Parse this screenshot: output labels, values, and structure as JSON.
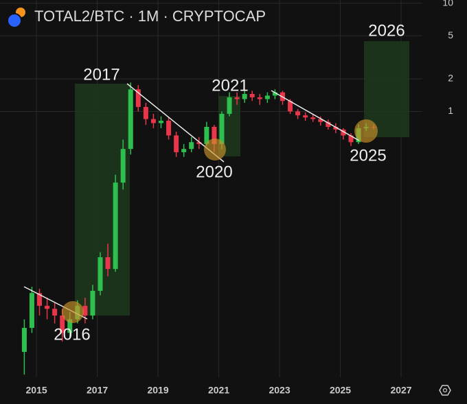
{
  "chart_data": {
    "type": "candlestick",
    "title": "TOTAL2/BTC · 1M · CRYPTOCAP",
    "x": [
      2014.6,
      2014.85,
      2015.1,
      2015.35,
      2015.6,
      2015.85,
      2016.1,
      2016.35,
      2016.6,
      2016.85,
      2017.1,
      2017.35,
      2017.6,
      2017.85,
      2018.1,
      2018.35,
      2018.6,
      2018.85,
      2019.1,
      2019.35,
      2019.6,
      2019.85,
      2020.1,
      2020.35,
      2020.6,
      2020.85,
      2021.1,
      2021.35,
      2021.6,
      2021.85,
      2022.1,
      2022.35,
      2022.6,
      2022.85,
      2023.1,
      2023.35,
      2023.6,
      2023.85,
      2024.1,
      2024.35,
      2024.6,
      2024.85,
      2025.1,
      2025.35,
      2025.6,
      2025.85,
      2026.1
    ],
    "open": [
      0.006,
      0.01,
      0.021,
      0.016,
      0.015,
      0.013,
      0.009,
      0.012,
      0.016,
      0.013,
      0.022,
      0.045,
      0.035,
      0.22,
      0.45,
      1.6,
      1.1,
      0.85,
      0.78,
      0.82,
      0.6,
      0.42,
      0.45,
      0.52,
      0.5,
      0.72,
      0.5,
      0.95,
      1.35,
      1.3,
      1.45,
      1.35,
      1.3,
      1.4,
      1.5,
      1.25,
      1.0,
      0.92,
      0.88,
      0.85,
      0.8,
      0.72,
      0.68,
      0.6,
      0.52,
      0.7,
      0.72
    ],
    "high": [
      0.012,
      0.024,
      0.023,
      0.019,
      0.017,
      0.015,
      0.014,
      0.018,
      0.019,
      0.025,
      0.05,
      0.06,
      0.26,
      0.55,
      1.85,
      1.75,
      1.2,
      0.95,
      0.9,
      0.88,
      0.65,
      0.5,
      0.58,
      0.58,
      0.8,
      0.75,
      1.0,
      1.5,
      1.5,
      1.55,
      1.55,
      1.45,
      1.5,
      1.6,
      1.55,
      1.3,
      1.05,
      0.98,
      0.95,
      0.9,
      0.84,
      0.78,
      0.7,
      0.63,
      0.76,
      0.78,
      0.76
    ],
    "low": [
      0.0037,
      0.009,
      0.013,
      0.012,
      0.011,
      0.0075,
      0.008,
      0.011,
      0.011,
      0.012,
      0.02,
      0.03,
      0.033,
      0.19,
      0.4,
      1.0,
      0.75,
      0.7,
      0.7,
      0.55,
      0.38,
      0.38,
      0.42,
      0.45,
      0.48,
      0.42,
      0.45,
      0.9,
      1.15,
      1.2,
      1.25,
      1.15,
      1.2,
      1.3,
      1.15,
      0.95,
      0.85,
      0.82,
      0.8,
      0.74,
      0.68,
      0.63,
      0.55,
      0.48,
      0.5,
      0.66,
      0.68
    ],
    "close": [
      0.01,
      0.021,
      0.016,
      0.015,
      0.013,
      0.009,
      0.012,
      0.016,
      0.013,
      0.022,
      0.045,
      0.035,
      0.22,
      0.45,
      1.6,
      1.1,
      0.85,
      0.78,
      0.82,
      0.6,
      0.42,
      0.45,
      0.52,
      0.5,
      0.72,
      0.5,
      0.95,
      1.35,
      1.3,
      1.45,
      1.35,
      1.3,
      1.4,
      1.5,
      1.25,
      1.0,
      0.92,
      0.88,
      0.85,
      0.8,
      0.72,
      0.68,
      0.6,
      0.52,
      0.7,
      0.72,
      0.71
    ],
    "up_color": "#2fbf4f",
    "down_color": "#e8374a",
    "xlim": [
      2013.8,
      2027.7
    ],
    "xticks": [
      2015,
      2017,
      2019,
      2021,
      2023,
      2025,
      2027
    ],
    "ylim": [
      0.0035,
      10.7
    ],
    "yticks": [
      10,
      5,
      2,
      1
    ],
    "log_y": true,
    "grid": true,
    "annotations": [
      "2017",
      "2016",
      "2020",
      "2021",
      "2025",
      "2026"
    ]
  }
}
